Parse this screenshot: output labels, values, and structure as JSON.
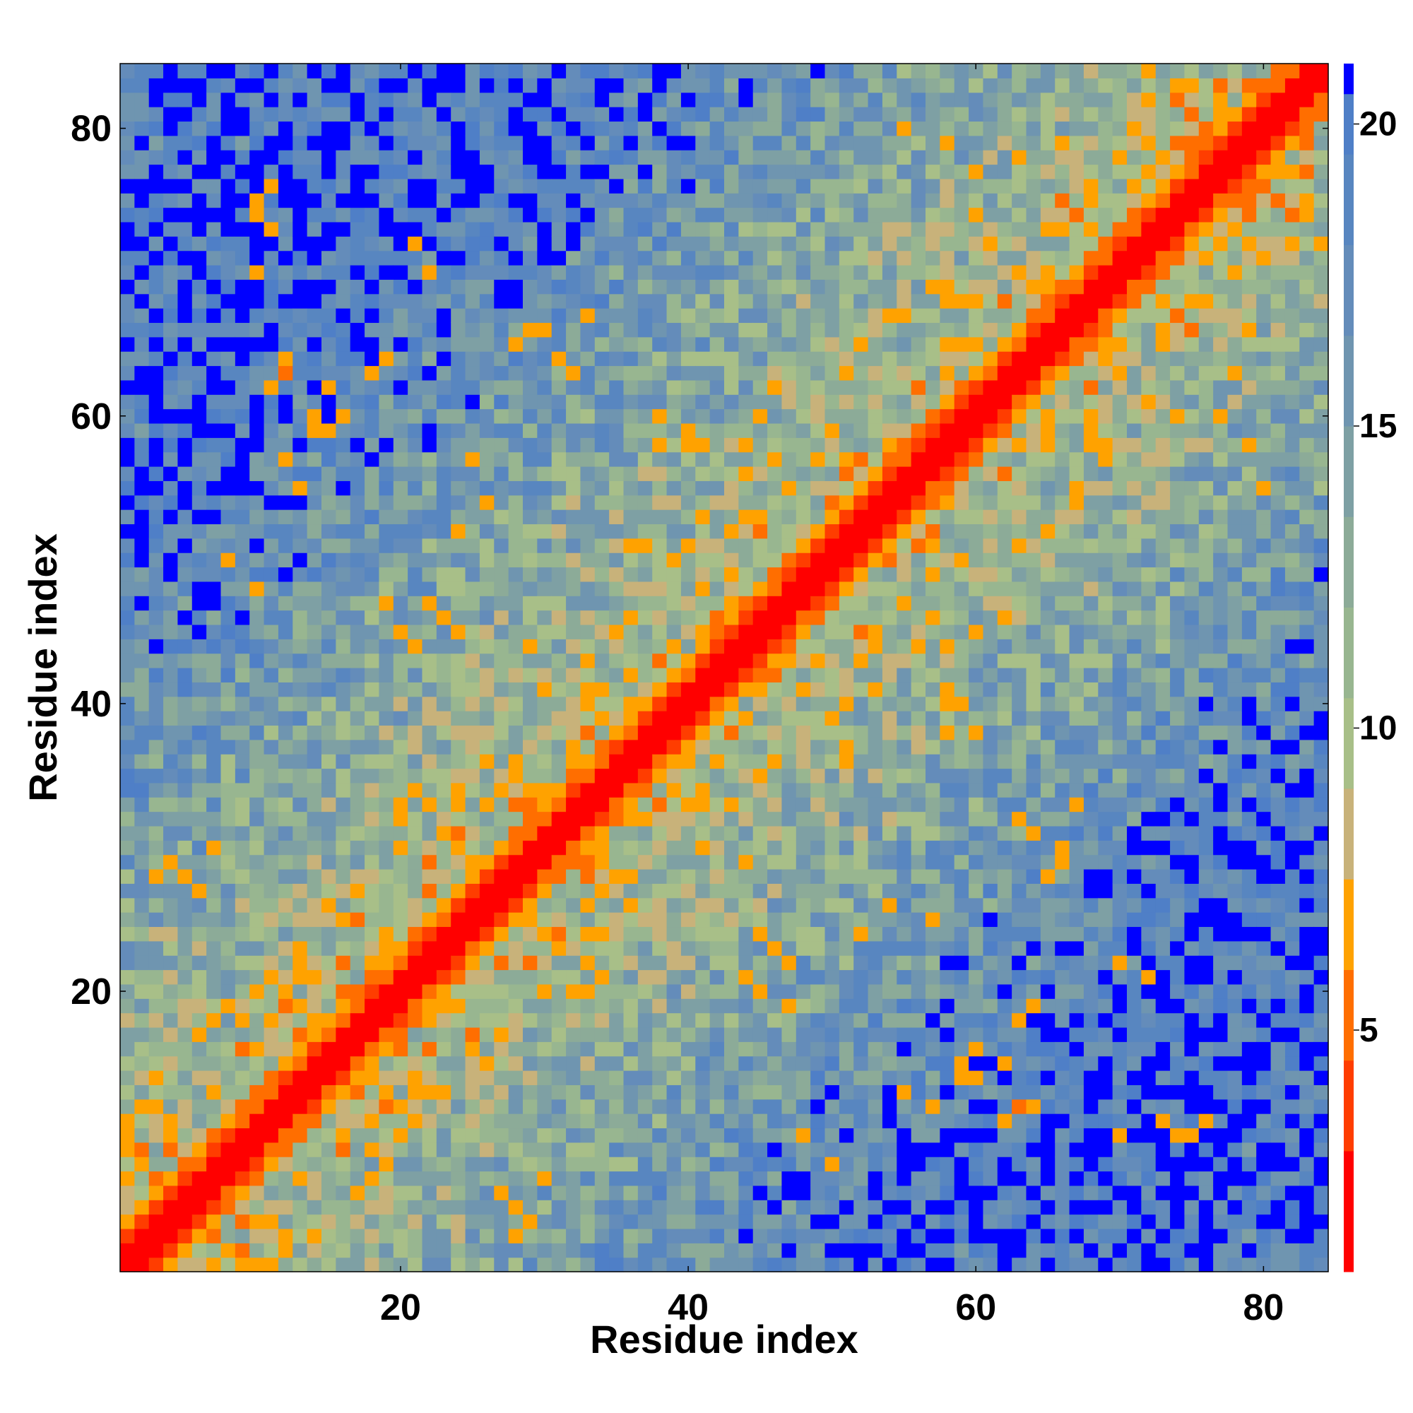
{
  "chart_data": {
    "type": "heatmap",
    "title": "",
    "xlabel": "Residue index",
    "ylabel": "Residue index",
    "n_residues": 84,
    "xlim": [
      0.5,
      84.5
    ],
    "ylim": [
      0.5,
      84.5
    ],
    "x_ticks": [
      20,
      40,
      60,
      80
    ],
    "y_ticks": [
      20,
      40,
      60,
      80
    ],
    "colorbar": {
      "range": [
        1,
        21
      ],
      "ticks": [
        5,
        10,
        15,
        20
      ],
      "bands": [
        {
          "from": 1,
          "to": 3,
          "color": "#ff0000"
        },
        {
          "from": 3,
          "to": 4.5,
          "color": "#ff3d00"
        },
        {
          "from": 4.5,
          "to": 6,
          "color": "#ff6e00"
        },
        {
          "from": 6,
          "to": 7.5,
          "color": "#ffa200"
        },
        {
          "from": 7.5,
          "to": 9,
          "color": "#c8b27a"
        },
        {
          "from": 9,
          "to": 10.5,
          "color": "#a8bf88"
        },
        {
          "from": 10.5,
          "to": 12,
          "color": "#98b690"
        },
        {
          "from": 12,
          "to": 13.5,
          "color": "#8cab98"
        },
        {
          "from": 13.5,
          "to": 15,
          "color": "#7ea0a4"
        },
        {
          "from": 15,
          "to": 16.5,
          "color": "#6f95b0"
        },
        {
          "from": 16.5,
          "to": 18,
          "color": "#648cba"
        },
        {
          "from": 18,
          "to": 19.5,
          "color": "#5886c0"
        },
        {
          "from": 19.5,
          "to": 20.5,
          "color": "#4f7fc7"
        },
        {
          "from": 20.5,
          "to": 21,
          "color": "#0000ff"
        }
      ]
    },
    "matrix_description": "Symmetric residue-residue distance map; values ~1-3 on the diagonal (red), rising with sequence separation; distant pairs saturate at >20 (blue).",
    "secondary_contacts": [
      [
        3,
        28,
        6
      ],
      [
        4,
        29,
        6
      ],
      [
        5,
        28,
        7
      ],
      [
        6,
        27,
        6
      ],
      [
        7,
        30,
        7
      ],
      [
        10,
        75,
        6
      ],
      [
        11,
        73,
        6
      ],
      [
        10,
        70,
        7
      ],
      [
        11,
        62,
        6
      ],
      [
        12,
        63,
        5
      ],
      [
        14,
        60,
        6
      ],
      [
        15,
        59,
        7
      ],
      [
        18,
        63,
        6
      ],
      [
        19,
        64,
        7
      ],
      [
        25,
        57,
        7
      ],
      [
        28,
        65,
        6
      ],
      [
        29,
        66,
        6
      ],
      [
        31,
        64,
        6
      ],
      [
        32,
        63,
        7
      ],
      [
        38,
        58,
        6
      ],
      [
        40,
        59,
        6
      ],
      [
        41,
        58,
        7
      ],
      [
        44,
        56,
        7
      ],
      [
        48,
        10,
        7
      ],
      [
        50,
        8,
        7
      ],
      [
        55,
        13,
        6
      ],
      [
        57,
        12,
        6
      ],
      [
        59,
        14,
        7
      ],
      [
        60,
        16,
        6
      ],
      [
        62,
        15,
        7
      ],
      [
        64,
        12,
        7
      ],
      [
        66,
        30,
        6
      ],
      [
        67,
        33,
        7
      ],
      [
        70,
        22,
        7
      ],
      [
        72,
        21,
        6
      ],
      [
        73,
        66,
        6
      ],
      [
        75,
        68,
        6
      ],
      [
        77,
        60,
        6
      ],
      [
        78,
        63,
        6
      ],
      [
        79,
        58,
        7
      ],
      [
        80,
        55,
        7
      ],
      [
        76,
        11,
        6
      ],
      [
        74,
        10,
        7
      ],
      [
        62,
        46,
        7
      ],
      [
        60,
        38,
        6
      ],
      [
        58,
        40,
        7
      ],
      [
        45,
        24,
        6
      ],
      [
        46,
        23,
        7
      ],
      [
        42,
        36,
        6
      ],
      [
        47,
        19,
        6
      ],
      [
        44,
        21,
        7
      ],
      [
        35,
        28,
        6
      ],
      [
        36,
        26,
        7
      ],
      [
        22,
        47,
        7
      ],
      [
        20,
        45,
        6
      ],
      [
        24,
        52,
        7
      ],
      [
        26,
        54,
        6
      ]
    ]
  }
}
